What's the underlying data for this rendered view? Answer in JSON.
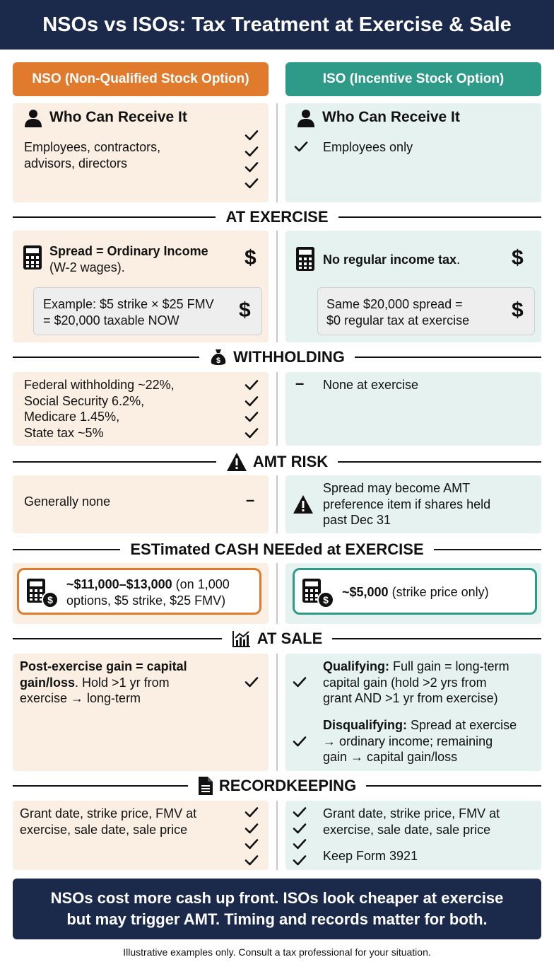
{
  "title": "NSOs vs ISOs: Tax Treatment at Exercise & Sale",
  "colors": {
    "nso": "#e07b2e",
    "iso": "#2e9a88",
    "navy": "#1b2a4a"
  },
  "columns": {
    "nso": "NSO (Non-Qualified Stock Option)",
    "iso": "ISO (Incentive Stock Option)"
  },
  "who": {
    "heading": "Who Can Receive It",
    "nso_text": "Employees, contractors, advisors, directors",
    "iso_text": "Employees only"
  },
  "sections": {
    "exercise": "AT EXERCISE",
    "withholding": "WITHHOLDING",
    "amt": "AMT RISK",
    "cash": "ESTimated CASH NEEded at EXERCISE",
    "sale": "AT SALE",
    "records": "RECORDKEEPING"
  },
  "exercise": {
    "nso_bold": "Spread = Ordinary Income",
    "nso_rest": "(W-2 wages).",
    "nso_example_1": "Example: $5 strike × $25 FMV",
    "nso_example_2": "= $20,000 taxable NOW",
    "iso_bold": "No regular income tax",
    "iso_rest": ".",
    "iso_example_1": "Same $20,000 spread =",
    "iso_example_2": "$0 regular tax at exercise",
    "dollar": "$"
  },
  "withholding": {
    "nso_lines": [
      "Federal withholding ~22%,",
      "Social Security 6.2%,",
      "Medicare 1.45%,",
      "State tax ~5%"
    ],
    "iso_text": "None at exercise",
    "dash": "–"
  },
  "amt": {
    "nso_text": "Generally none",
    "dash": "–",
    "iso_lines": [
      "Spread may become AMT",
      "preference item if shares held",
      "past Dec 31"
    ]
  },
  "cash": {
    "nso_bold": "~$11,000–$13,000",
    "nso_rest_1": " (on 1,000",
    "nso_rest_2": "options, $5 strike, $25 FMV)",
    "iso_bold": "~$5,000",
    "iso_rest": " (strike price only)"
  },
  "sale": {
    "nso_bold_1": "Post-exercise gain = capital",
    "nso_bold_2": "gain/loss",
    "nso_rest_2": ". Hold >1 yr from",
    "nso_rest_3": "exercise → long-term",
    "iso_q_bold": "Qualifying:",
    "iso_q_1": " Full gain = long-term",
    "iso_q_2": "capital gain (hold >2 yrs from",
    "iso_q_3": "grant AND >1 yr from exercise)",
    "iso_d_bold": "Disqualifying:",
    "iso_d_1": " Spread at exercise",
    "iso_d_2": "→ ordinary income; remaining",
    "iso_d_3": "gain → capital gain/loss"
  },
  "records": {
    "nso_1": "Grant date, strike price, FMV at",
    "nso_2": "exercise, sale date, sale price",
    "iso_1": "Grant date, strike price, FMV at",
    "iso_2": "exercise, sale date, sale price",
    "iso_3": "Keep Form 3921"
  },
  "footer": {
    "line1": "NSOs cost more cash up front. ISOs look cheaper at exercise",
    "line2": "but may trigger AMT. Timing and records matter for both."
  },
  "disclaimer": "Illustrative examples only. Consult a tax professional for your situation."
}
